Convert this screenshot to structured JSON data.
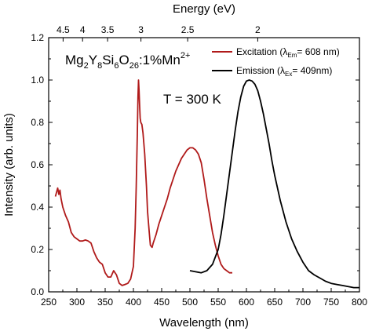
{
  "chart_data": {
    "type": "line",
    "title": "",
    "xlabel": "Wavelength (nm)",
    "x2label": "Energy (eV)",
    "ylabel": "Intensity (arb. units)",
    "xlim": [
      250,
      800
    ],
    "ylim": [
      0.0,
      1.2
    ],
    "x_ticks": [
      250,
      300,
      350,
      400,
      450,
      500,
      550,
      600,
      650,
      700,
      750,
      800
    ],
    "x_tick_labels": [
      "250",
      "300",
      "350",
      "400",
      "450",
      "500",
      "550",
      "600",
      "650",
      "700",
      "750",
      "800"
    ],
    "y_ticks": [
      0.0,
      0.2,
      0.4,
      0.6,
      0.8,
      1.0,
      1.2
    ],
    "y_tick_labels": [
      "0.0",
      "0.2",
      "0.4",
      "0.6",
      "0.8",
      "1.0",
      "1.2"
    ],
    "top_ticks": [
      4.5,
      4,
      3.5,
      3,
      2.5,
      2
    ],
    "top_tick_labels": [
      "4.5",
      "4",
      "3.5",
      "3",
      "2.5",
      "2"
    ],
    "grid": false,
    "legend_position": "top-right",
    "annotations": {
      "compound": {
        "base": "Mg",
        "s1": "2",
        "b2": "Y",
        "s2": "8",
        "b3": "Si",
        "s3": "6",
        "b4": "O",
        "s4": "26",
        "b5": ":1%Mn",
        "sup": "2+"
      },
      "temperature": "T = 300 K"
    },
    "series": [
      {
        "id": "excitation",
        "color": "#b01a1a",
        "legend": {
          "pre": "Excitation (",
          "lambda": "λ",
          "sub": "Em",
          "post": "= 608 nm)"
        },
        "x": [
          262,
          266,
          268,
          270,
          272,
          275,
          280,
          285,
          290,
          295,
          300,
          305,
          310,
          315,
          320,
          325,
          330,
          335,
          340,
          345,
          350,
          355,
          360,
          365,
          370,
          375,
          380,
          385,
          390,
          395,
          400,
          403,
          405,
          407,
          408,
          409,
          410,
          411,
          412,
          413,
          415,
          417,
          420,
          423,
          425,
          428,
          430,
          433,
          435,
          440,
          445,
          450,
          455,
          460,
          465,
          470,
          475,
          480,
          485,
          490,
          495,
          500,
          505,
          510,
          515,
          520,
          525,
          530,
          535,
          540,
          545,
          550,
          555,
          560,
          565,
          570,
          575
        ],
        "y": [
          0.45,
          0.49,
          0.46,
          0.48,
          0.44,
          0.4,
          0.36,
          0.33,
          0.28,
          0.26,
          0.25,
          0.24,
          0.24,
          0.245,
          0.24,
          0.23,
          0.19,
          0.16,
          0.14,
          0.13,
          0.09,
          0.07,
          0.07,
          0.1,
          0.08,
          0.04,
          0.03,
          0.035,
          0.04,
          0.06,
          0.12,
          0.3,
          0.5,
          0.75,
          0.92,
          1.0,
          0.95,
          0.88,
          0.82,
          0.8,
          0.79,
          0.75,
          0.65,
          0.5,
          0.38,
          0.28,
          0.22,
          0.21,
          0.23,
          0.27,
          0.32,
          0.36,
          0.4,
          0.44,
          0.49,
          0.53,
          0.57,
          0.6,
          0.63,
          0.65,
          0.67,
          0.68,
          0.68,
          0.67,
          0.65,
          0.61,
          0.53,
          0.44,
          0.36,
          0.28,
          0.22,
          0.17,
          0.13,
          0.11,
          0.1,
          0.09,
          0.09
        ]
      },
      {
        "id": "emission",
        "color": "#000000",
        "legend": {
          "pre": "Emission (",
          "lambda": "λ",
          "sub": "Ex",
          "post": "= 409nm)"
        },
        "x": [
          500,
          510,
          520,
          530,
          540,
          550,
          555,
          560,
          565,
          570,
          575,
          580,
          585,
          590,
          595,
          600,
          605,
          610,
          615,
          620,
          625,
          630,
          635,
          640,
          645,
          650,
          660,
          670,
          680,
          690,
          700,
          710,
          720,
          730,
          740,
          750,
          760,
          770,
          780,
          790,
          800
        ],
        "y": [
          0.1,
          0.095,
          0.09,
          0.1,
          0.13,
          0.2,
          0.27,
          0.36,
          0.46,
          0.56,
          0.66,
          0.76,
          0.85,
          0.92,
          0.97,
          0.995,
          1.0,
          0.995,
          0.98,
          0.95,
          0.9,
          0.84,
          0.77,
          0.7,
          0.62,
          0.55,
          0.43,
          0.33,
          0.25,
          0.19,
          0.14,
          0.1,
          0.08,
          0.065,
          0.05,
          0.04,
          0.035,
          0.03,
          0.025,
          0.02,
          0.02
        ]
      }
    ]
  }
}
